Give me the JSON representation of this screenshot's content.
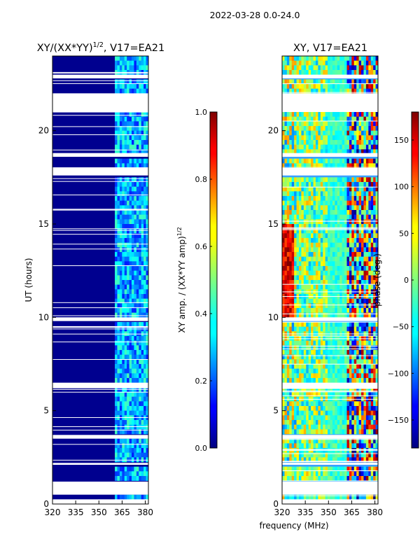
{
  "figure_title": "2022-03-28 0.0-24.0",
  "xlabel_shared": "frequency (MHz)",
  "chart_data": [
    {
      "type": "heatmap",
      "title": "XY/(XX*YY)^1/2, V17=EA21",
      "title_main": "XY/(XX*YY)",
      "title_exp": "1/2",
      "title_tail": ", V17=EA21",
      "ylabel": "UT (hours)",
      "xlim": [
        320,
        382
      ],
      "ylim": [
        0,
        24
      ],
      "xticks": [
        320,
        335,
        350,
        365,
        380
      ],
      "yticks": [
        0,
        5,
        10,
        15,
        20
      ],
      "colorbar": {
        "label_main": "XY amp. / (XX*YY amp)",
        "label_exp": "1/2",
        "range": [
          0.0,
          1.0
        ],
        "ticks": [
          "0.0",
          "0.2",
          "0.4",
          "0.6",
          "0.8",
          "1.0"
        ],
        "tick_values": [
          0.0,
          0.2,
          0.4,
          0.6,
          0.8,
          1.0
        ]
      },
      "gaps_hours": [
        [
          0.0,
          0.25
        ],
        [
          0.5,
          1.2
        ],
        [
          2.1,
          2.2
        ],
        [
          3.5,
          3.7
        ],
        [
          6.2,
          6.5
        ],
        [
          9.8,
          10.0
        ],
        [
          17.6,
          18.0
        ],
        [
          18.6,
          18.8
        ],
        [
          21.0,
          22.0
        ],
        [
          22.8,
          23.0
        ]
      ],
      "bright_band_mhz": [
        361,
        382
      ]
    },
    {
      "type": "heatmap",
      "title": "XY, V17=EA21",
      "xlabel": "frequency (MHz)",
      "xlim": [
        320,
        382
      ],
      "ylim": [
        0,
        24
      ],
      "xticks": [
        320,
        335,
        350,
        365,
        380
      ],
      "yticks": [
        0,
        5,
        10,
        15,
        20
      ],
      "colorbar": {
        "label": "phase (deg.)",
        "range": [
          -180,
          180
        ],
        "ticks": [
          "−150",
          "−100",
          "−50",
          "0",
          "50",
          "100",
          "150"
        ],
        "tick_values": [
          -150,
          -100,
          -50,
          0,
          50,
          100,
          150
        ]
      },
      "gaps_hours": [
        [
          0.0,
          0.25
        ],
        [
          0.5,
          1.2
        ],
        [
          2.1,
          2.2
        ],
        [
          3.5,
          3.7
        ],
        [
          6.2,
          6.5
        ],
        [
          9.8,
          10.0
        ],
        [
          17.6,
          18.0
        ],
        [
          18.6,
          18.8
        ],
        [
          21.0,
          22.0
        ],
        [
          22.8,
          23.0
        ]
      ]
    }
  ],
  "colors": {
    "jet_dark_blue": "#00008f",
    "gap": "#ffffff",
    "axis": "#000000"
  }
}
